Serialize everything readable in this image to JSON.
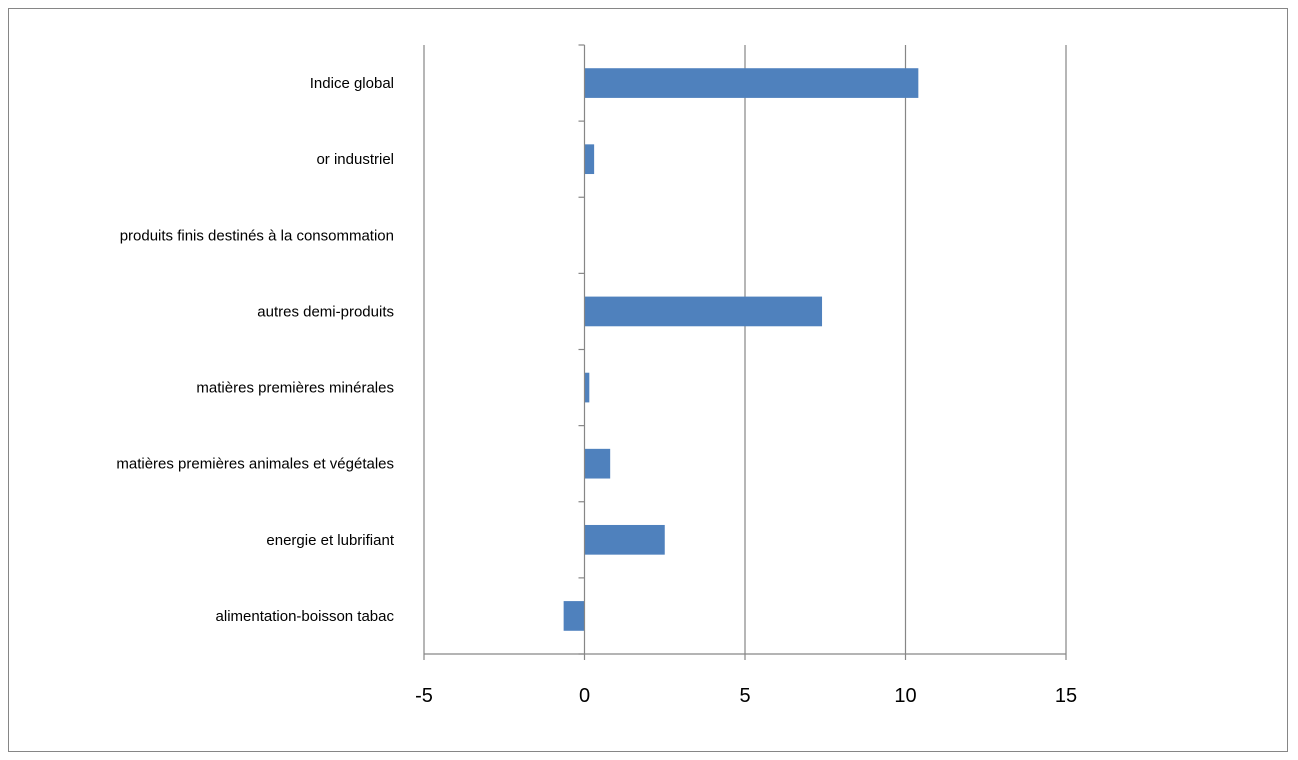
{
  "chart_data": {
    "type": "bar",
    "orientation": "horizontal",
    "categories": [
      "Indice global",
      "or industriel",
      "produits finis destinés à la consommation",
      "autres demi-produits",
      "matières premières minérales",
      "matières premières animales et végétales",
      "energie et lubrifiant",
      "alimentation-boisson tabac"
    ],
    "values": [
      10.4,
      0.3,
      0,
      7.4,
      0.15,
      0.8,
      2.5,
      -0.65
    ],
    "xlim": [
      -5,
      15
    ],
    "xticks": [
      -5,
      0,
      5,
      10,
      15
    ],
    "xtick_labels": [
      "-5",
      "0",
      "5",
      "10",
      "15"
    ],
    "grid": "vertical major gridlines",
    "legend": "none",
    "title": "",
    "xlabel": "",
    "ylabel": "",
    "colors": {
      "bar": "#4f81bd",
      "gridline": "#868686",
      "axis": "#868686",
      "frame": "#868686"
    }
  }
}
